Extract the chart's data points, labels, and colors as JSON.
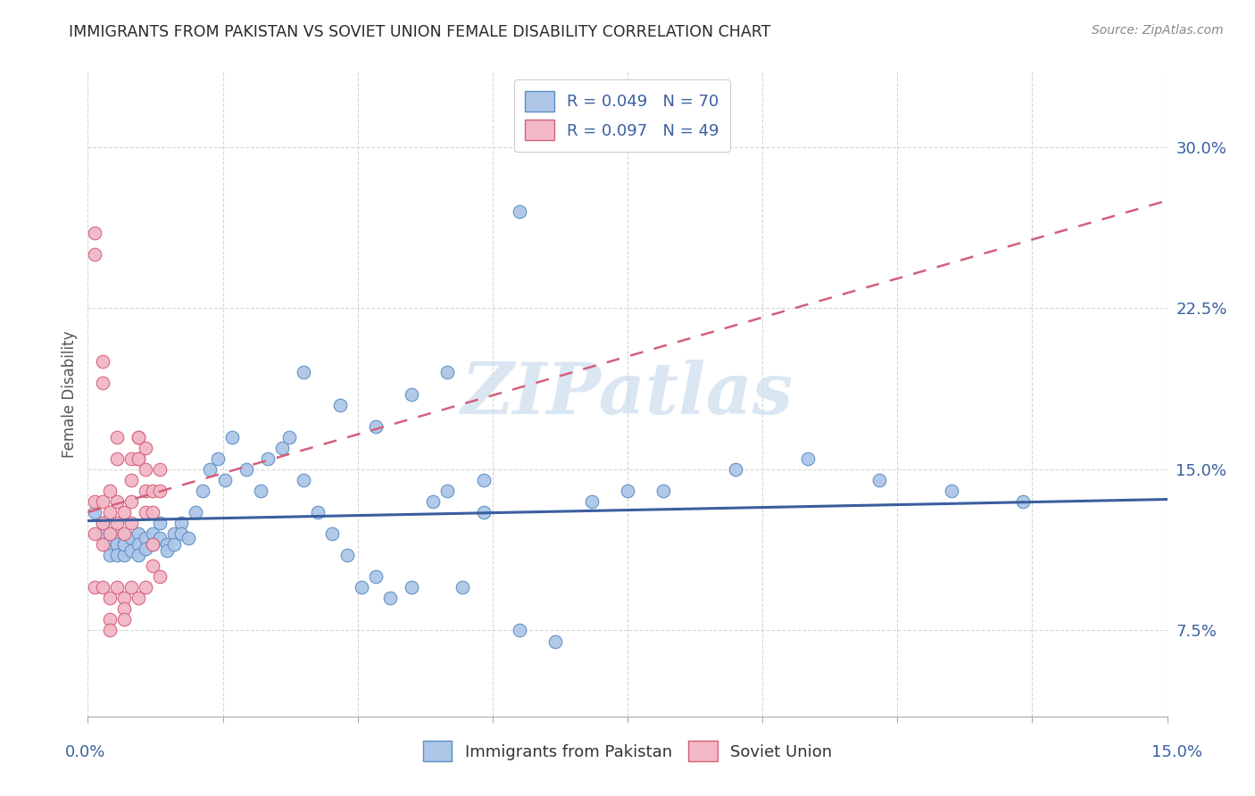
{
  "title": "IMMIGRANTS FROM PAKISTAN VS SOVIET UNION FEMALE DISABILITY CORRELATION CHART",
  "source": "Source: ZipAtlas.com",
  "ylabel": "Female Disability",
  "ytick_vals": [
    0.075,
    0.15,
    0.225,
    0.3
  ],
  "ytick_labels": [
    "7.5%",
    "15.0%",
    "22.5%",
    "30.0%"
  ],
  "xlim": [
    0.0,
    0.15
  ],
  "ylim": [
    0.035,
    0.335
  ],
  "pakistan_color": "#aec6e8",
  "pakistan_edge": "#5b8ec4",
  "soviet_color": "#f2b8c6",
  "soviet_edge": "#d4607a",
  "pakistan_line_color": "#3a5fa0",
  "soviet_line_color": "#d4607a",
  "watermark_color": "#ccdcef",
  "legend_text_color": "#3a5fa0",
  "title_color": "#2a2a2a",
  "source_color": "#888888",
  "ylabel_color": "#555555",
  "axis_label_color": "#3a5fa0",
  "grid_color": "#cccccc",
  "pakistan_x": [
    0.001,
    0.002,
    0.002,
    0.003,
    0.003,
    0.003,
    0.004,
    0.004,
    0.004,
    0.005,
    0.005,
    0.005,
    0.006,
    0.006,
    0.007,
    0.007,
    0.007,
    0.008,
    0.008,
    0.009,
    0.009,
    0.01,
    0.01,
    0.011,
    0.011,
    0.012,
    0.012,
    0.013,
    0.013,
    0.014,
    0.015,
    0.016,
    0.017,
    0.018,
    0.019,
    0.02,
    0.022,
    0.024,
    0.025,
    0.027,
    0.028,
    0.03,
    0.032,
    0.034,
    0.036,
    0.038,
    0.04,
    0.042,
    0.045,
    0.048,
    0.05,
    0.052,
    0.055,
    0.06,
    0.065,
    0.07,
    0.075,
    0.08,
    0.09,
    0.1,
    0.03,
    0.035,
    0.04,
    0.045,
    0.05,
    0.055,
    0.06,
    0.11,
    0.12,
    0.13
  ],
  "pakistan_y": [
    0.13,
    0.125,
    0.12,
    0.12,
    0.115,
    0.11,
    0.12,
    0.115,
    0.11,
    0.115,
    0.11,
    0.115,
    0.118,
    0.112,
    0.12,
    0.115,
    0.11,
    0.118,
    0.113,
    0.12,
    0.115,
    0.125,
    0.118,
    0.115,
    0.112,
    0.12,
    0.115,
    0.125,
    0.12,
    0.118,
    0.13,
    0.14,
    0.15,
    0.155,
    0.145,
    0.165,
    0.15,
    0.14,
    0.155,
    0.16,
    0.165,
    0.145,
    0.13,
    0.12,
    0.11,
    0.095,
    0.1,
    0.09,
    0.095,
    0.135,
    0.14,
    0.095,
    0.13,
    0.075,
    0.07,
    0.135,
    0.14,
    0.14,
    0.15,
    0.155,
    0.195,
    0.18,
    0.17,
    0.185,
    0.195,
    0.145,
    0.27,
    0.145,
    0.14,
    0.135
  ],
  "soviet_x": [
    0.001,
    0.001,
    0.001,
    0.002,
    0.002,
    0.002,
    0.002,
    0.003,
    0.003,
    0.003,
    0.003,
    0.004,
    0.004,
    0.004,
    0.005,
    0.005,
    0.005,
    0.006,
    0.006,
    0.006,
    0.007,
    0.007,
    0.007,
    0.008,
    0.008,
    0.008,
    0.009,
    0.009,
    0.01,
    0.01,
    0.001,
    0.001,
    0.002,
    0.002,
    0.003,
    0.003,
    0.004,
    0.004,
    0.005,
    0.005,
    0.006,
    0.006,
    0.007,
    0.007,
    0.008,
    0.008,
    0.009,
    0.009,
    0.01
  ],
  "soviet_y": [
    0.135,
    0.12,
    0.095,
    0.135,
    0.125,
    0.115,
    0.095,
    0.14,
    0.13,
    0.12,
    0.09,
    0.135,
    0.125,
    0.095,
    0.13,
    0.12,
    0.09,
    0.135,
    0.125,
    0.095,
    0.165,
    0.155,
    0.09,
    0.14,
    0.13,
    0.095,
    0.14,
    0.13,
    0.15,
    0.14,
    0.26,
    0.25,
    0.2,
    0.19,
    0.08,
    0.075,
    0.165,
    0.155,
    0.085,
    0.08,
    0.155,
    0.145,
    0.165,
    0.155,
    0.16,
    0.15,
    0.115,
    0.105,
    0.1
  ]
}
